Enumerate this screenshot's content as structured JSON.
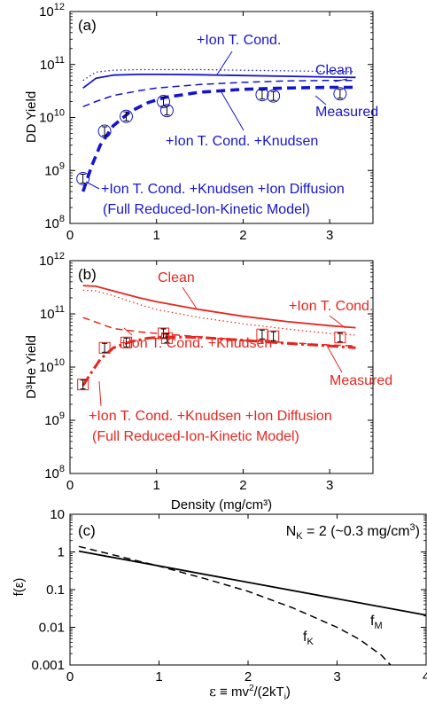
{
  "colors": {
    "blue": "#1515cc",
    "red": "#e8251d",
    "black": "#000000"
  },
  "chart_data": [
    {
      "panel": "(a)",
      "type": "line",
      "ylabel": "DD Yield",
      "xlim": [
        0,
        3.5
      ],
      "ylim": [
        100000000.0,
        1000000000000.0
      ],
      "yscale": "log",
      "xticks": [
        "0",
        "1",
        "2",
        "3"
      ],
      "yticks": [
        "10⁸",
        "10⁹",
        "10¹⁰",
        "10¹¹",
        "10¹²"
      ],
      "series": [
        {
          "style": "dotted",
          "x": [
            0.15,
            0.3,
            0.5,
            0.8,
            1.0,
            1.5,
            2.0,
            2.5,
            3.0,
            3.3
          ],
          "y": [
            50000000000.0,
            72000000000.0,
            78000000000.0,
            80000000000.0,
            80000000000.0,
            80000000000.0,
            78000000000.0,
            76000000000.0,
            74000000000.0,
            73000000000.0
          ]
        },
        {
          "style": "solid",
          "x": [
            0.15,
            0.3,
            0.5,
            0.8,
            1.0,
            1.5,
            2.0,
            2.5,
            3.0,
            3.3
          ],
          "y": [
            36000000000.0,
            55000000000.0,
            63000000000.0,
            65000000000.0,
            65000000000.0,
            64000000000.0,
            62000000000.0,
            60000000000.0,
            58000000000.0,
            57000000000.0
          ]
        },
        {
          "style": "dashed",
          "x": [
            0.15,
            0.3,
            0.5,
            0.8,
            1.0,
            1.5,
            2.0,
            2.5,
            3.0,
            3.3
          ],
          "y": [
            16000000000.0,
            20000000000.0,
            26000000000.0,
            32000000000.0,
            36000000000.0,
            42000000000.0,
            46000000000.0,
            49000000000.0,
            50000000000.0,
            50000000000.0
          ]
        },
        {
          "style": "thick-dashed",
          "x": [
            0.15,
            0.25,
            0.35,
            0.5,
            0.7,
            0.9,
            1.1,
            1.5,
            2.0,
            2.5,
            3.0,
            3.3
          ],
          "y": [
            400000000.0,
            1200000000.0,
            3000000000.0,
            7000000000.0,
            13000000000.0,
            19000000000.0,
            24000000000.0,
            30000000000.0,
            34000000000.0,
            36000000000.0,
            37000000000.0,
            37000000000.0
          ]
        }
      ],
      "measured": {
        "x": [
          0.15,
          0.4,
          0.65,
          1.08,
          1.12,
          2.22,
          2.35,
          3.12
        ],
        "y": [
          700000000.0,
          5500000000.0,
          10500000000.0,
          20000000000.0,
          13500000000.0,
          27000000000.0,
          25500000000.0,
          28000000000.0
        ]
      },
      "annotations": [
        {
          "text": "+Ion T. Cond.",
          "x": 1.75,
          "y": 260000000000.0
        },
        {
          "text": "Clean",
          "x": 2.85,
          "y": 130000000000.0
        },
        {
          "text": "Measured",
          "x": 2.5,
          "y": 14500000000.0
        },
        {
          "text": "+Ion T. Cond. +Knudsen",
          "x": 1.85,
          "y": 3200000000.0
        },
        {
          "text": "+Ion T. Cond. +Knudsen +Ion Diffusion",
          "x": 1.8,
          "y": 580000000.0
        },
        {
          "text": "(Full Reduced-Ion-Kinetic Model)",
          "x": 1.6,
          "y": 155000000.0
        }
      ]
    },
    {
      "panel": "(b)",
      "type": "line",
      "ylabel": "D³He Yield",
      "xlabel": "Density (mg/cm³)",
      "xlim": [
        0,
        3.5
      ],
      "ylim": [
        100000000.0,
        1000000000000.0
      ],
      "yscale": "log",
      "xticks": [
        "0",
        "1",
        "2",
        "3"
      ],
      "yticks": [
        "10⁸",
        "10⁹",
        "10¹⁰",
        "10¹¹",
        "10¹²"
      ],
      "series": [
        {
          "style": "solid",
          "x": [
            0.15,
            0.3,
            0.5,
            0.8,
            1.0,
            1.5,
            2.0,
            2.5,
            3.0,
            3.3
          ],
          "y": [
            340000000000.0,
            330000000000.0,
            270000000000.0,
            200000000000.0,
            170000000000.0,
            120000000000.0,
            90000000000.0,
            72000000000.0,
            60000000000.0,
            55000000000.0
          ]
        },
        {
          "style": "dotted",
          "x": [
            0.15,
            0.3,
            0.5,
            0.8,
            1.0,
            1.5,
            2.0,
            2.5,
            3.0,
            3.3
          ],
          "y": [
            280000000000.0,
            270000000000.0,
            220000000000.0,
            150000000000.0,
            120000000000.0,
            85000000000.0,
            65000000000.0,
            52000000000.0,
            43000000000.0,
            40000000000.0
          ]
        },
        {
          "style": "dashed",
          "x": [
            0.15,
            0.3,
            0.5,
            0.8,
            1.0,
            1.5,
            2.0,
            2.5,
            3.0,
            3.3
          ],
          "y": [
            85000000000.0,
            70000000000.0,
            53000000000.0,
            46000000000.0,
            43000000000.0,
            37000000000.0,
            32000000000.0,
            29000000000.0,
            26000000000.0,
            25000000000.0
          ]
        },
        {
          "style": "thick-dashdot",
          "x": [
            0.15,
            0.25,
            0.35,
            0.5,
            0.7,
            0.9,
            1.1,
            1.5,
            2.0,
            2.5,
            3.0,
            3.3
          ],
          "y": [
            4500000000.0,
            8000000000.0,
            14000000000.0,
            23000000000.0,
            30000000000.0,
            35000000000.0,
            37000000000.0,
            36000000000.0,
            32000000000.0,
            28000000000.0,
            25000000000.0,
            23000000000.0
          ]
        }
      ],
      "measured": {
        "x": [
          0.15,
          0.4,
          0.65,
          1.08,
          1.12,
          2.22,
          2.35,
          3.12
        ],
        "y": [
          4700000000.0,
          23000000000.0,
          29000000000.0,
          43000000000.0,
          35000000000.0,
          41000000000.0,
          38000000000.0,
          36000000000.0
        ]
      },
      "annotations": [
        {
          "text": "Clean",
          "x": 1.3,
          "y": 500000000000.0
        },
        {
          "text": "+Ion T. Cond.",
          "x": 2.75,
          "y": 155000000000.0
        },
        {
          "text": "+Ion T. Cond. +Knudsen",
          "x": 1.35,
          "y": 16000000000.0
        },
        {
          "text": "Measured",
          "x": 2.95,
          "y": 5800000000.0
        },
        {
          "text": "+Ion T. Cond. +Knudsen +Ion Diffusion",
          "x": 1.7,
          "y": 1050000000.0
        },
        {
          "text": "(Full Reduced-Ion-Kinetic Model)",
          "x": 1.6,
          "y": 320000000.0
        }
      ]
    },
    {
      "panel": "(c)",
      "type": "line",
      "ylabel": "f(ε)",
      "xlabel": "ε ≡ mv²/(2kTᵢ)",
      "xlim": [
        0,
        4
      ],
      "ylim": [
        0.001,
        10
      ],
      "yscale": "log",
      "xticks": [
        "0",
        "1",
        "2",
        "3",
        "4"
      ],
      "yticks": [
        "0.001",
        "0.01",
        "0.1",
        "1",
        "10"
      ],
      "header": "N_K = 2 (~0.3 mg/cm³)",
      "series": [
        {
          "name": "f_M",
          "style": "solid",
          "x": [
            0.1,
            4.0
          ],
          "y": [
            1.05,
            0.021
          ]
        },
        {
          "name": "f_K",
          "style": "dashed",
          "x": [
            0.1,
            0.5,
            1.0,
            1.5,
            2.0,
            2.5,
            3.0,
            3.25,
            3.5,
            3.6
          ],
          "y": [
            1.4,
            0.82,
            0.42,
            0.2,
            0.09,
            0.033,
            0.01,
            0.0048,
            0.0018,
            0.001
          ]
        }
      ]
    }
  ]
}
